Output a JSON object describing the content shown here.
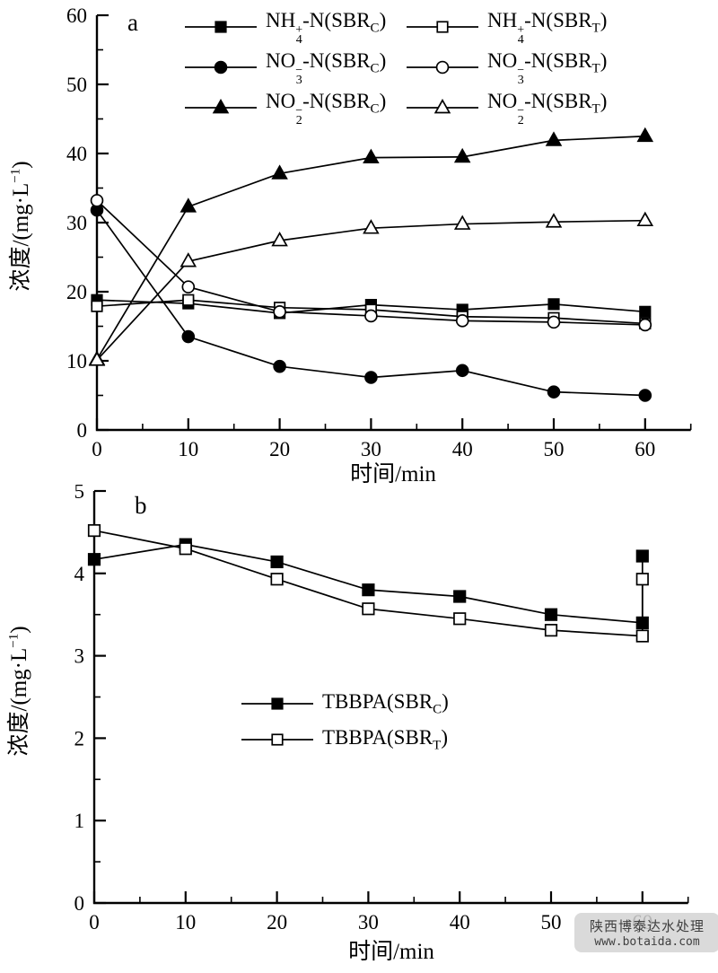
{
  "watermark": {
    "line1": "陕西博泰达水处理",
    "line2": "www.botaida.com"
  },
  "chart_data": [
    {
      "type": "line",
      "panel_label": "a",
      "xlabel": "时间/min",
      "ylabel_prefix": "浓度/(mg·L",
      "ylabel_sup": "−1",
      "ylabel_suffix": ")",
      "xlim": [
        0,
        65
      ],
      "ylim": [
        0,
        60
      ],
      "xticks": [
        0,
        10,
        20,
        30,
        40,
        50,
        60
      ],
      "xtick_labels": [
        "0",
        "10",
        "20",
        "30",
        "40",
        "50",
        "60"
      ],
      "xminor_step": 5,
      "yticks": [
        0,
        10,
        20,
        30,
        40,
        50,
        60
      ],
      "ytick_labels": [
        "0",
        "10",
        "20",
        "30",
        "40",
        "50",
        "60"
      ],
      "yminor_step": 5,
      "grid": false,
      "legend_position": "top-inside-two-columns",
      "series": [
        {
          "id": "nh4-c",
          "name": "NH4+-N(SBR_C)",
          "marker": "square-filled",
          "label": {
            "prefix": "NH",
            "stack_top": "+",
            "stack_bottom": "4",
            "mid": "-N(SBR",
            "reactor": "C",
            "suffix": ")"
          },
          "x": [
            0,
            10,
            20,
            30,
            40,
            50,
            60
          ],
          "y": [
            18.8,
            18.3,
            16.9,
            18.1,
            17.4,
            18.2,
            17.1
          ]
        },
        {
          "id": "nh4-t",
          "name": "NH4+-N(SBR_T)",
          "marker": "square-open",
          "label": {
            "prefix": "NH",
            "stack_top": "+",
            "stack_bottom": "4",
            "mid": "-N(SBR",
            "reactor": "T",
            "suffix": ")"
          },
          "x": [
            0,
            10,
            20,
            30,
            40,
            50,
            60
          ],
          "y": [
            17.9,
            18.8,
            17.7,
            17.4,
            16.4,
            16.2,
            15.4
          ]
        },
        {
          "id": "no3-c",
          "name": "NO3--N(SBR_C)",
          "marker": "circle-filled",
          "label": {
            "prefix": "NO",
            "stack_top": "−",
            "stack_bottom": "3",
            "mid": "-N(SBR",
            "reactor": "C",
            "suffix": ")"
          },
          "x": [
            0,
            10,
            20,
            30,
            40,
            50,
            60
          ],
          "y": [
            31.8,
            13.5,
            9.2,
            7.6,
            8.6,
            5.5,
            5.0
          ]
        },
        {
          "id": "no3-t",
          "name": "NO3--N(SBR_T)",
          "marker": "circle-open",
          "label": {
            "prefix": "NO",
            "stack_top": "−",
            "stack_bottom": "3",
            "mid": "-N(SBR",
            "reactor": "T",
            "suffix": ")"
          },
          "x": [
            0,
            10,
            20,
            30,
            40,
            50,
            60
          ],
          "y": [
            33.2,
            20.7,
            17.1,
            16.5,
            15.8,
            15.6,
            15.2
          ]
        },
        {
          "id": "no2-c",
          "name": "NO2--N(SBR_C)",
          "marker": "triangle-filled",
          "label": {
            "prefix": "NO",
            "stack_top": "−",
            "stack_bottom": "2",
            "mid": "-N(SBR",
            "reactor": "C",
            "suffix": ")"
          },
          "x": [
            0,
            10,
            20,
            30,
            40,
            50,
            60
          ],
          "y": [
            10.2,
            32.3,
            37.1,
            39.4,
            39.5,
            41.9,
            42.5
          ]
        },
        {
          "id": "no2-t",
          "name": "NO2--N(SBR_T)",
          "marker": "triangle-open",
          "label": {
            "prefix": "NO",
            "stack_top": "−",
            "stack_bottom": "2",
            "mid": "-N(SBR",
            "reactor": "T",
            "suffix": ")"
          },
          "x": [
            0,
            10,
            20,
            30,
            40,
            50,
            60
          ],
          "y": [
            10.1,
            24.4,
            27.4,
            29.2,
            29.8,
            30.1,
            30.3
          ]
        }
      ]
    },
    {
      "type": "line",
      "panel_label": "b",
      "xlabel": "时间/min",
      "ylabel_prefix": "浓度/(mg·L",
      "ylabel_sup": "−1",
      "ylabel_suffix": ")",
      "xlim": [
        0,
        65
      ],
      "ylim": [
        0,
        5
      ],
      "xticks": [
        0,
        10,
        20,
        30,
        40,
        50,
        60
      ],
      "xtick_labels": [
        "0",
        "10",
        "20",
        "30",
        "40",
        "50",
        "60"
      ],
      "xminor_step": 5,
      "yticks": [
        0,
        1,
        2,
        3,
        4,
        5
      ],
      "ytick_labels": [
        "0",
        "1",
        "2",
        "3",
        "4",
        "5"
      ],
      "yminor_step": 0.5,
      "grid": false,
      "legend_position": "center-inside",
      "series": [
        {
          "id": "tbbpa-c",
          "name": "TBBPA(SBR_C)",
          "marker": "square-filled",
          "label": {
            "prefix": "TBBPA(SBR",
            "reactor": "C",
            "suffix": ")"
          },
          "x": [
            0,
            10,
            20,
            30,
            40,
            50,
            60,
            60
          ],
          "y": [
            4.17,
            4.35,
            4.14,
            3.8,
            3.72,
            3.5,
            3.4,
            4.21
          ]
        },
        {
          "id": "tbbpa-t",
          "name": "TBBPA(SBR_T)",
          "marker": "square-open",
          "label": {
            "prefix": "TBBPA(SBR",
            "reactor": "T",
            "suffix": ")"
          },
          "x": [
            0,
            10,
            20,
            30,
            40,
            50,
            60,
            60
          ],
          "y": [
            4.52,
            4.3,
            3.93,
            3.57,
            3.45,
            3.31,
            3.24,
            3.93
          ]
        }
      ]
    }
  ]
}
